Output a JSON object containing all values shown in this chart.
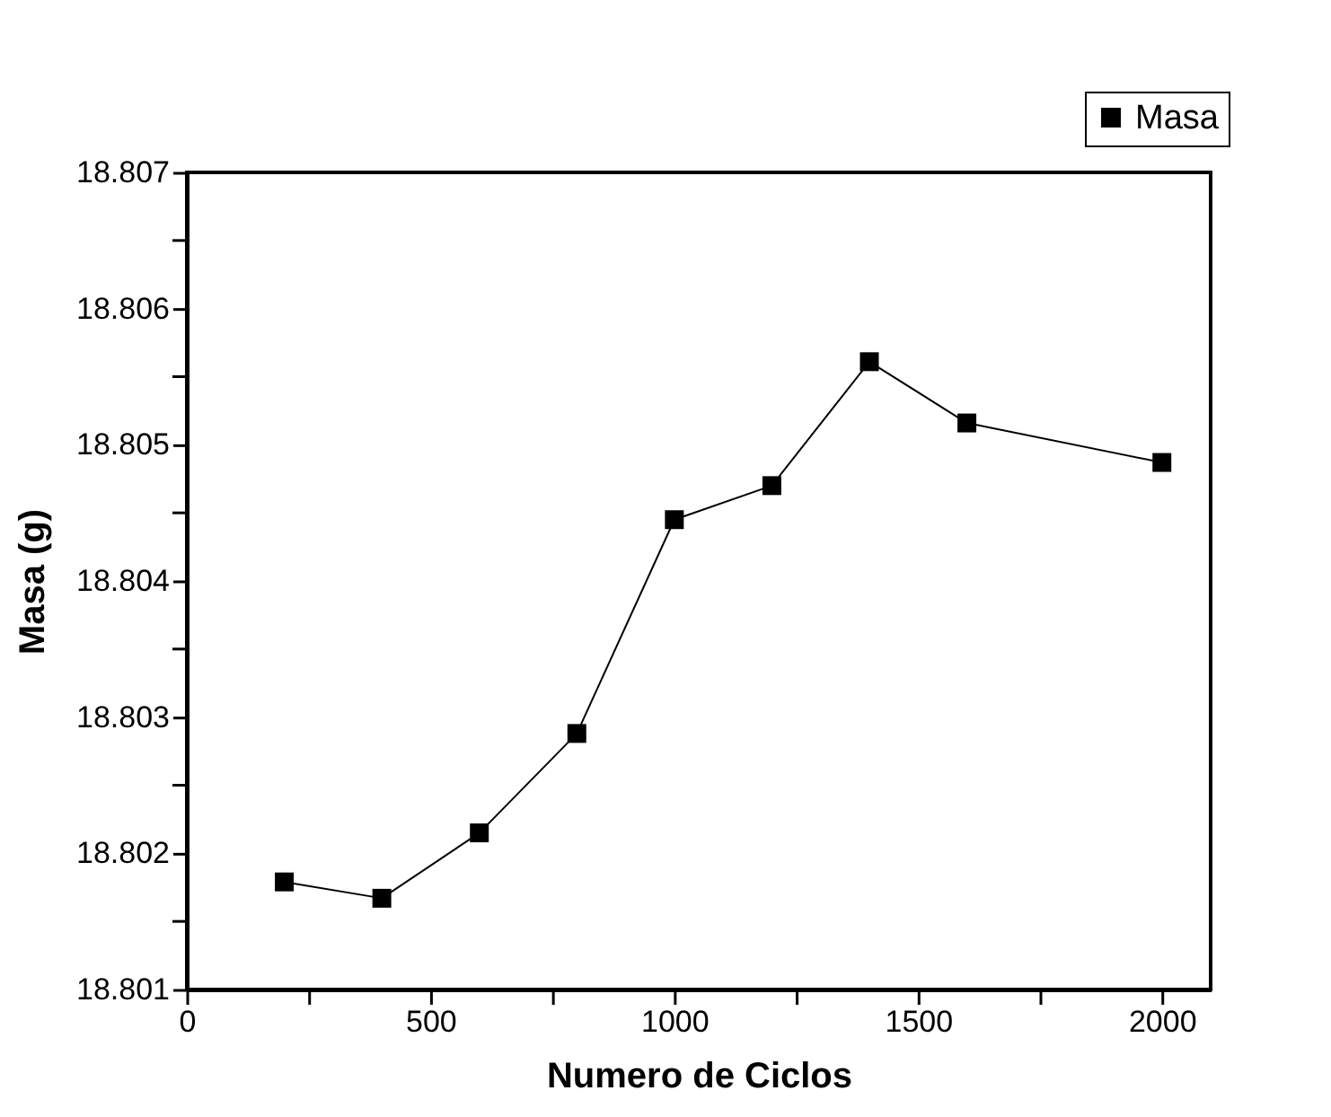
{
  "chart_data": {
    "type": "line",
    "xlabel": "Numero de Ciclos",
    "ylabel": "Masa (g)",
    "x": [
      200,
      400,
      600,
      800,
      1000,
      1200,
      1400,
      1600,
      2000
    ],
    "series": [
      {
        "name": "Masa",
        "color": "#000000",
        "values": [
          18.80179,
          18.80167,
          18.80215,
          18.80288,
          18.80445,
          18.8047,
          18.80561,
          18.80516,
          18.80487
        ]
      }
    ],
    "xlim": [
      0,
      2100
    ],
    "xticks": [
      0,
      {
        "value": 250,
        "label": null
      },
      500,
      {
        "value": 750,
        "label": null
      },
      1000,
      {
        "value": 1250,
        "label": null
      },
      1500,
      {
        "value": 1750,
        "label": null
      },
      2000
    ],
    "ylim": [
      18.801,
      18.807
    ],
    "yticks": [
      18.801,
      {
        "value": 18.8015,
        "label": null
      },
      18.802,
      {
        "value": 18.8025,
        "label": null
      },
      18.803,
      {
        "value": 18.8035,
        "label": null
      },
      18.804,
      {
        "value": 18.8045,
        "label": null
      },
      18.805,
      {
        "value": 18.8055,
        "label": null
      },
      18.806,
      {
        "value": 18.8065,
        "label": null
      },
      18.807
    ],
    "marker": "square",
    "line_style": "solid",
    "grid": false,
    "legend": "top right"
  }
}
